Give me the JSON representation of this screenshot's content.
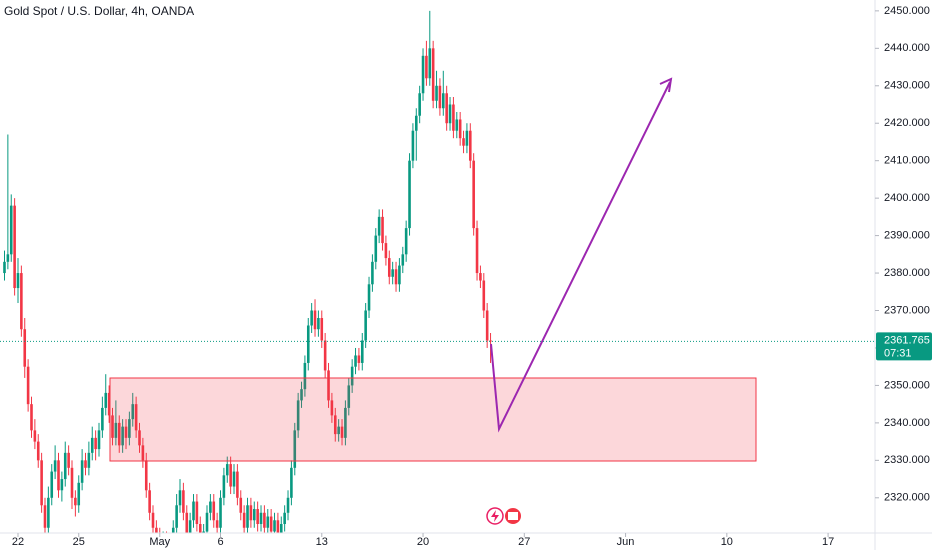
{
  "chart_data": {
    "type": "candlestick",
    "title": "Gold Spot / U.S. Dollar, 4h, OANDA",
    "up_color": "#089981",
    "down_color": "#f23645",
    "last_price": 2361.765,
    "countdown": "07:31",
    "xlim": [
      -5.33,
      253.9
    ],
    "ylim": [
      2310.6,
      2452.9
    ],
    "xticks": [
      {
        "value": 0,
        "label": "22"
      },
      {
        "value": 18,
        "label": "25"
      },
      {
        "value": 42,
        "label": "May"
      },
      {
        "value": 60,
        "label": "6"
      },
      {
        "value": 90,
        "label": "13"
      },
      {
        "value": 120,
        "label": "20"
      },
      {
        "value": 150,
        "label": "27"
      },
      {
        "value": 180,
        "label": "Jun"
      },
      {
        "value": 210,
        "label": "10"
      },
      {
        "value": 240,
        "label": "17"
      }
    ],
    "yticks": [
      {
        "value": 2320,
        "label": "2320.000"
      },
      {
        "value": 2330,
        "label": "2330.000"
      },
      {
        "value": 2340,
        "label": "2340.000"
      },
      {
        "value": 2350,
        "label": "2350.000"
      },
      {
        "value": 2360,
        "label": "2360.000"
      },
      {
        "value": 2370,
        "label": "2370.000"
      },
      {
        "value": 2380,
        "label": "2380.000"
      },
      {
        "value": 2390,
        "label": "2390.000"
      },
      {
        "value": 2400,
        "label": "2400.000"
      },
      {
        "value": 2410,
        "label": "2410.000"
      },
      {
        "value": 2420,
        "label": "2420.000"
      },
      {
        "value": 2430,
        "label": "2430.000"
      },
      {
        "value": 2440,
        "label": "2440.000"
      },
      {
        "value": 2450,
        "label": "2450.000"
      }
    ],
    "x": [
      -4,
      -3,
      -2,
      -1,
      0,
      1,
      2,
      3,
      4,
      5,
      6,
      7,
      8,
      9,
      10,
      11,
      12,
      13,
      14,
      15,
      16,
      17,
      18,
      19,
      20,
      21,
      22,
      23,
      24,
      25,
      26,
      27,
      28,
      29,
      30,
      31,
      32,
      33,
      34,
      35,
      36,
      37,
      38,
      39,
      40,
      41,
      42,
      43,
      44,
      45,
      46,
      47,
      48,
      49,
      50,
      51,
      52,
      53,
      54,
      55,
      56,
      57,
      58,
      59,
      60,
      61,
      62,
      63,
      64,
      65,
      66,
      67,
      68,
      69,
      70,
      71,
      72,
      73,
      74,
      75,
      76,
      77,
      78,
      79,
      80,
      81,
      82,
      83,
      84,
      85,
      86,
      87,
      88,
      89,
      90,
      91,
      92,
      93,
      94,
      95,
      96,
      97,
      98,
      99,
      100,
      101,
      102,
      103,
      104,
      105,
      106,
      107,
      108,
      109,
      110,
      111,
      112,
      113,
      114,
      115,
      116,
      117,
      118,
      119,
      120,
      121,
      122,
      123,
      124,
      125,
      126,
      127,
      128,
      129,
      130,
      131,
      132,
      133,
      134,
      135,
      136,
      137,
      138,
      139,
      140
    ],
    "ohlc": [
      [
        2380,
        2386,
        2378,
        2383
      ],
      [
        2383,
        2417,
        2381,
        2385
      ],
      [
        2385,
        2401,
        2383,
        2398
      ],
      [
        2398,
        2400,
        2374,
        2376
      ],
      [
        2376,
        2384,
        2372,
        2380
      ],
      [
        2380,
        2382,
        2363,
        2365
      ],
      [
        2365,
        2368,
        2352,
        2355
      ],
      [
        2355,
        2357,
        2343,
        2345
      ],
      [
        2345,
        2347,
        2336,
        2338
      ],
      [
        2338,
        2341,
        2333,
        2335
      ],
      [
        2335,
        2337,
        2328,
        2330
      ],
      [
        2330,
        2332,
        2316,
        2318
      ],
      [
        2318,
        2320,
        2308,
        2312
      ],
      [
        2312,
        2323,
        2310,
        2320
      ],
      [
        2320,
        2329,
        2318,
        2327
      ],
      [
        2327,
        2334,
        2325,
        2330
      ],
      [
        2330,
        2332,
        2320,
        2322
      ],
      [
        2322,
        2327,
        2319,
        2325
      ],
      [
        2325,
        2335,
        2323,
        2332
      ],
      [
        2332,
        2334,
        2326,
        2328
      ],
      [
        2328,
        2330,
        2317,
        2320
      ],
      [
        2320,
        2322,
        2315,
        2318
      ],
      [
        2318,
        2326,
        2316,
        2324
      ],
      [
        2324,
        2333,
        2322,
        2330
      ],
      [
        2330,
        2332,
        2326,
        2328
      ],
      [
        2328,
        2335,
        2326,
        2332
      ],
      [
        2332,
        2339,
        2330,
        2336
      ],
      [
        2336,
        2338,
        2330,
        2333
      ],
      [
        2333,
        2340,
        2331,
        2338
      ],
      [
        2338,
        2347,
        2336,
        2344
      ],
      [
        2344,
        2353,
        2342,
        2348
      ],
      [
        2348,
        2350,
        2340,
        2342
      ],
      [
        2342,
        2344,
        2334,
        2336
      ],
      [
        2336,
        2346,
        2334,
        2340
      ],
      [
        2340,
        2342,
        2332,
        2334
      ],
      [
        2334,
        2341,
        2332,
        2339
      ],
      [
        2339,
        2341,
        2333,
        2336
      ],
      [
        2336,
        2343,
        2334,
        2341
      ],
      [
        2341,
        2348,
        2339,
        2345
      ],
      [
        2345,
        2347,
        2336,
        2338
      ],
      [
        2338,
        2340,
        2332,
        2334
      ],
      [
        2334,
        2336,
        2328,
        2330
      ],
      [
        2330,
        2332,
        2320,
        2322
      ],
      [
        2322,
        2324,
        2314,
        2316
      ],
      [
        2316,
        2318,
        2310,
        2312
      ],
      [
        2312,
        2314,
        2308,
        2310
      ],
      [
        2310,
        2312,
        2304,
        2306
      ],
      [
        2306,
        2311,
        2304,
        2309
      ],
      [
        2309,
        2311,
        2302,
        2304
      ],
      [
        2304,
        2309,
        2302,
        2307
      ],
      [
        2307,
        2314,
        2305,
        2312
      ],
      [
        2312,
        2321,
        2310,
        2318
      ],
      [
        2318,
        2325,
        2316,
        2322
      ],
      [
        2322,
        2324,
        2314,
        2316
      ],
      [
        2316,
        2318,
        2308,
        2310
      ],
      [
        2310,
        2316,
        2308,
        2314
      ],
      [
        2314,
        2321,
        2312,
        2319
      ],
      [
        2319,
        2321,
        2311,
        2313
      ],
      [
        2313,
        2315,
        2306,
        2308
      ],
      [
        2308,
        2313,
        2306,
        2311
      ],
      [
        2311,
        2318,
        2309,
        2316
      ],
      [
        2316,
        2321,
        2314,
        2319
      ],
      [
        2319,
        2321,
        2312,
        2314
      ],
      [
        2314,
        2316,
        2310,
        2312
      ],
      [
        2312,
        2322,
        2310,
        2320
      ],
      [
        2320,
        2328,
        2318,
        2326
      ],
      [
        2326,
        2331,
        2324,
        2329
      ],
      [
        2329,
        2331,
        2321,
        2323
      ],
      [
        2323,
        2329,
        2321,
        2327
      ],
      [
        2327,
        2329,
        2318,
        2320
      ],
      [
        2320,
        2322,
        2314,
        2316
      ],
      [
        2316,
        2318,
        2310,
        2312
      ],
      [
        2312,
        2320,
        2310,
        2318
      ],
      [
        2318,
        2320,
        2312,
        2314
      ],
      [
        2314,
        2319,
        2312,
        2317
      ],
      [
        2317,
        2319,
        2311,
        2313
      ],
      [
        2313,
        2318,
        2311,
        2316
      ],
      [
        2316,
        2318,
        2310,
        2312
      ],
      [
        2312,
        2317,
        2310,
        2315
      ],
      [
        2315,
        2317,
        2309,
        2311
      ],
      [
        2311,
        2316,
        2309,
        2314
      ],
      [
        2314,
        2316,
        2308,
        2310
      ],
      [
        2310,
        2315,
        2308,
        2313
      ],
      [
        2313,
        2318,
        2311,
        2316
      ],
      [
        2316,
        2322,
        2314,
        2320
      ],
      [
        2320,
        2330,
        2318,
        2328
      ],
      [
        2328,
        2340,
        2326,
        2338
      ],
      [
        2338,
        2348,
        2336,
        2346
      ],
      [
        2346,
        2351,
        2344,
        2349
      ],
      [
        2349,
        2358,
        2347,
        2356
      ],
      [
        2356,
        2368,
        2354,
        2366
      ],
      [
        2366,
        2372,
        2364,
        2370
      ],
      [
        2370,
        2373,
        2363,
        2365
      ],
      [
        2365,
        2370,
        2363,
        2368
      ],
      [
        2368,
        2370,
        2360,
        2362
      ],
      [
        2362,
        2364,
        2352,
        2354
      ],
      [
        2354,
        2356,
        2344,
        2346
      ],
      [
        2346,
        2348,
        2340,
        2342
      ],
      [
        2342,
        2344,
        2335,
        2337
      ],
      [
        2337,
        2341,
        2335,
        2339
      ],
      [
        2339,
        2341,
        2334,
        2336
      ],
      [
        2336,
        2346,
        2334,
        2344
      ],
      [
        2344,
        2352,
        2342,
        2350
      ],
      [
        2350,
        2357,
        2348,
        2355
      ],
      [
        2355,
        2360,
        2353,
        2358
      ],
      [
        2358,
        2360,
        2354,
        2356
      ],
      [
        2356,
        2364,
        2354,
        2362
      ],
      [
        2362,
        2372,
        2360,
        2370
      ],
      [
        2370,
        2379,
        2368,
        2377
      ],
      [
        2377,
        2385,
        2375,
        2383
      ],
      [
        2383,
        2392,
        2381,
        2390
      ],
      [
        2390,
        2397,
        2388,
        2395
      ],
      [
        2395,
        2397,
        2386,
        2388
      ],
      [
        2388,
        2390,
        2382,
        2384
      ],
      [
        2384,
        2386,
        2377,
        2379
      ],
      [
        2379,
        2383,
        2377,
        2381
      ],
      [
        2381,
        2383,
        2375,
        2377
      ],
      [
        2377,
        2384,
        2375,
        2382
      ],
      [
        2382,
        2387,
        2380,
        2385
      ],
      [
        2385,
        2394,
        2383,
        2392
      ],
      [
        2392,
        2412,
        2390,
        2410
      ],
      [
        2410,
        2420,
        2408,
        2418
      ],
      [
        2418,
        2424,
        2410,
        2422
      ],
      [
        2422,
        2430,
        2420,
        2428
      ],
      [
        2428,
        2440,
        2426,
        2438
      ],
      [
        2438,
        2442,
        2430,
        2432
      ],
      [
        2432,
        2450,
        2430,
        2440
      ],
      [
        2440,
        2442,
        2424,
        2426
      ],
      [
        2426,
        2434,
        2424,
        2430
      ],
      [
        2430,
        2432,
        2422,
        2424
      ],
      [
        2424,
        2434,
        2422,
        2428
      ],
      [
        2428,
        2430,
        2418,
        2420
      ],
      [
        2420,
        2427,
        2418,
        2425
      ],
      [
        2425,
        2427,
        2416,
        2418
      ],
      [
        2418,
        2423,
        2416,
        2421
      ],
      [
        2421,
        2423,
        2414,
        2416
      ],
      [
        2416,
        2418,
        2412,
        2414
      ],
      [
        2414,
        2420,
        2412,
        2418
      ],
      [
        2418,
        2420,
        2408,
        2410
      ],
      [
        2410,
        2412,
        2390,
        2392
      ],
      [
        2392,
        2394,
        2378,
        2380
      ],
      [
        2380,
        2382,
        2376,
        2378
      ],
      [
        2378,
        2380,
        2368,
        2370
      ],
      [
        2370,
        2372,
        2360,
        2362
      ],
      [
        2362,
        2364,
        2356,
        2361.765
      ]
    ]
  }
}
